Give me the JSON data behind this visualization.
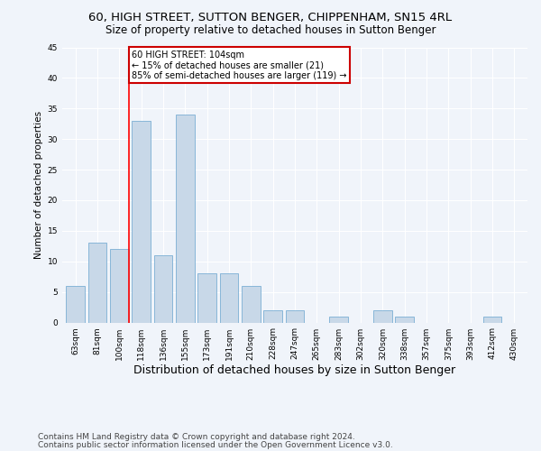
{
  "title": "60, HIGH STREET, SUTTON BENGER, CHIPPENHAM, SN15 4RL",
  "subtitle": "Size of property relative to detached houses in Sutton Benger",
  "xlabel": "Distribution of detached houses by size in Sutton Benger",
  "ylabel": "Number of detached properties",
  "categories": [
    "63sqm",
    "81sqm",
    "100sqm",
    "118sqm",
    "136sqm",
    "155sqm",
    "173sqm",
    "191sqm",
    "210sqm",
    "228sqm",
    "247sqm",
    "265sqm",
    "283sqm",
    "302sqm",
    "320sqm",
    "338sqm",
    "357sqm",
    "375sqm",
    "393sqm",
    "412sqm",
    "430sqm"
  ],
  "values": [
    6,
    13,
    12,
    33,
    11,
    34,
    8,
    8,
    6,
    2,
    2,
    0,
    1,
    0,
    2,
    1,
    0,
    0,
    0,
    1,
    0
  ],
  "bar_color": "#c8d8e8",
  "bar_edgecolor": "#7bafd4",
  "background_color": "#f0f4fa",
  "red_line_index": 2,
  "annotation_lines": [
    "60 HIGH STREET: 104sqm",
    "← 15% of detached houses are smaller (21)",
    "85% of semi-detached houses are larger (119) →"
  ],
  "annotation_box_color": "#cc0000",
  "ylim": [
    0,
    45
  ],
  "yticks": [
    0,
    5,
    10,
    15,
    20,
    25,
    30,
    35,
    40,
    45
  ],
  "footer_line1": "Contains HM Land Registry data © Crown copyright and database right 2024.",
  "footer_line2": "Contains public sector information licensed under the Open Government Licence v3.0.",
  "title_fontsize": 9.5,
  "subtitle_fontsize": 8.5,
  "xlabel_fontsize": 9,
  "ylabel_fontsize": 7.5,
  "tick_fontsize": 6.5,
  "annotation_fontsize": 7,
  "footer_fontsize": 6.5
}
